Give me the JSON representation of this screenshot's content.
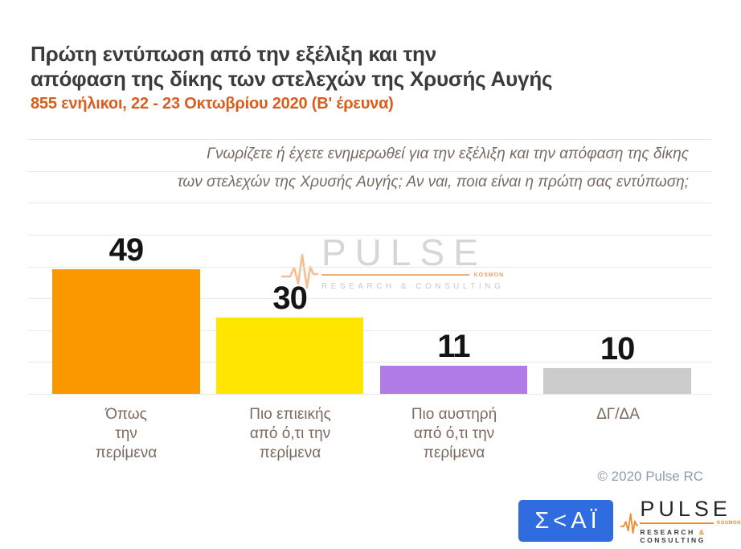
{
  "header": {
    "title_line1": "Πρώτη εντύπωση από την εξέλιξη και την",
    "title_line2": "απόφαση της δίκης των στελεχών της Χρυσής Αυγής",
    "subtitle": "855 ενήλικοι,  22 - 23 Οκτωβρίου  2020  (Β' έρευνα)"
  },
  "question": {
    "line1": "Γνωρίζετε ή έχετε ενημερωθεί για την εξέλιξη και την απόφαση της δίκης",
    "line2": "των στελεχών της Χρυσής Αυγής; Αν ναι, ποια είναι η πρώτη σας εντύπωση;"
  },
  "chart_data": {
    "type": "bar",
    "title": "Πρώτη εντύπωση από την εξέλιξη και την απόφαση της δίκης των στελεχών της Χρυσής Αυγής",
    "subtitle": "855 ενήλικοι,  22 - 23 Οκτωβρίου  2020  (Β' έρευνα)",
    "annotation": "Γνωρίζετε ή έχετε ενημερωθεί για την εξέλιξη και την απόφαση της δίκης των στελεχών της Χρυσής Αυγής; Αν ναι, ποια είναι η πρώτη σας εντύπωση;",
    "categories": [
      "Όπως\nτην\nπερίμενα",
      "Πιο επιεικής\nαπό ό,τι την\nπερίμενα",
      "Πιο αυστηρή\nαπό ό,τι την\nπερίμενα",
      "ΔΓ/ΔΑ"
    ],
    "values": [
      49,
      30,
      11,
      10
    ],
    "colors": [
      "#fb9800",
      "#ffe500",
      "#b17ce8",
      "#cbcbcb"
    ],
    "value_label_color": "#141414",
    "xlabel": "",
    "ylabel": "",
    "ylim": [
      0,
      100
    ],
    "grid": true,
    "gridline_count": 9,
    "legend": "none"
  },
  "watermark": {
    "brand": "PULSE",
    "small_text": "KOSMON",
    "tagline": "RESEARCH & CONSULTING"
  },
  "footer": {
    "copyright": "© 2020 Pulse RC",
    "skai": {
      "text": "Σ<ΑΪ",
      "bg_color": "#2f6cdf"
    },
    "pulse": {
      "brand": "PULSE",
      "small_text": "KOSMON",
      "tagline_research": "RESEARCH",
      "tagline_amp": "&",
      "tagline_consulting": "CONSULTING"
    }
  }
}
